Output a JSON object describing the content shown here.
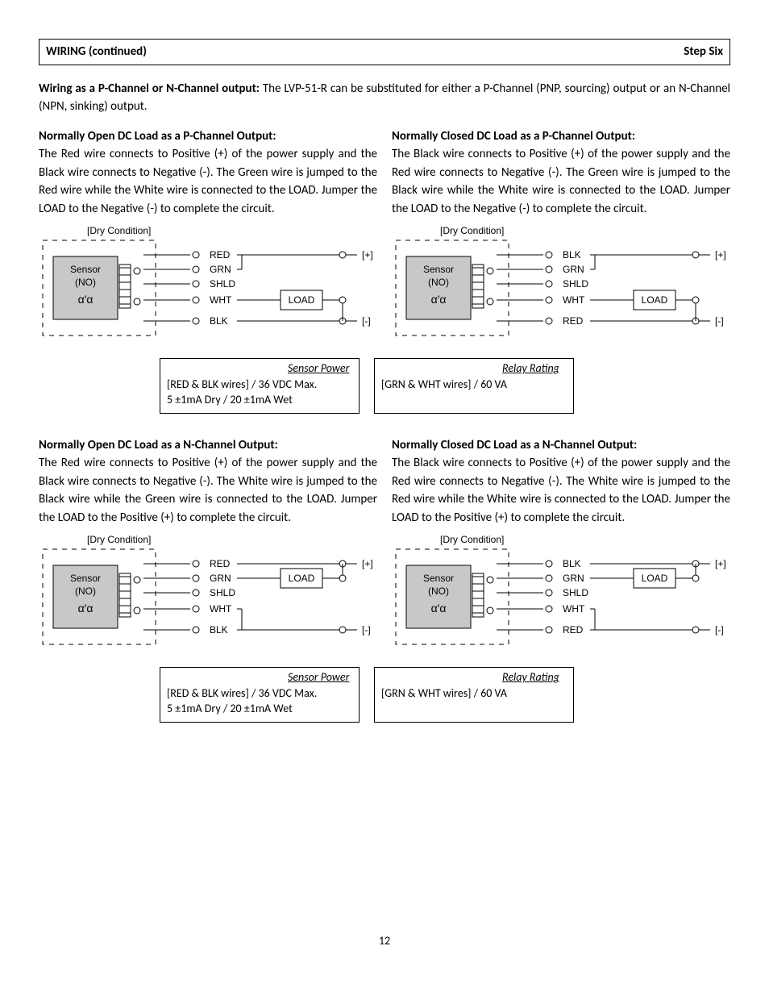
{
  "header": {
    "left": "WIRING (continued)",
    "right": "Step Six"
  },
  "intro": {
    "lead": "Wiring as a P-Channel or N-Channel output:",
    "rest": "  The LVP-51-R can be substituted for either a P-Channel (PNP, sourcing) output or an N-Channel (NPN, sinking) output."
  },
  "sections": {
    "p_no": {
      "title": "Normally Open DC Load as a P-Channel Output:",
      "body": "The Red wire connects to Positive (+) of the power supply and the Black wire connects to Negative (-). The Green wire is jumped to the Red wire while the White wire is connected to the LOAD.  Jumper the LOAD to the Negative (-) to complete the circuit."
    },
    "p_nc": {
      "title": "Normally Closed DC Load as a P-Channel Output:",
      "body": "The Black wire connects to Positive (+) of the power supply and the Red wire connects to Negative (-).  The Green wire is jumped to the Black wire while the White wire is connected to the LOAD.  Jumper the LOAD to the Negative (-) to complete the circuit."
    },
    "n_no": {
      "title": "Normally Open DC Load as a N-Channel Output:",
      "body": "The Red wire connects to Positive (+) of the power supply and the Black wire connects to Negative (-). The White wire is jumped to the Black wire while the Green wire is connected to the LOAD.  Jumper the LOAD to the Positive (+) to complete the circuit."
    },
    "n_nc": {
      "title": "Normally Closed DC Load as a N-Channel Output:",
      "body": "The Black wire connects to Positive (+) of the power supply and the Red wire connects to Negative (-).  The White wire is jumped to the Red wire while the White wire is connected to the LOAD.  Jumper the LOAD to the Positive (+) to complete the circuit."
    }
  },
  "info": {
    "sensor_power": {
      "title": "Sensor Power",
      "line1": "[RED & BLK wires] / 36 VDC Max.",
      "line2": "5 ±1mA Dry / 20 ±1mA Wet"
    },
    "relay_rating": {
      "title": "Relay Rating",
      "line1": "[GRN & WHT wires] / 60 VA"
    }
  },
  "diagram": {
    "dry_condition": "[Dry Condition]",
    "sensor": "Sensor",
    "no": "(NO)",
    "load": "LOAD",
    "plus": "[+]",
    "minus": "[-]",
    "wires_no": [
      "RED",
      "GRN",
      "SHLD",
      "WHT",
      "BLK"
    ],
    "wires_nc": [
      "BLK",
      "GRN",
      "SHLD",
      "WHT",
      "RED"
    ],
    "colors": {
      "sensor_fill": "#c8c8c8",
      "stroke": "#000000",
      "text": "#000000",
      "background": "#ffffff"
    },
    "font_size_label": 12
  },
  "page_number": "12"
}
